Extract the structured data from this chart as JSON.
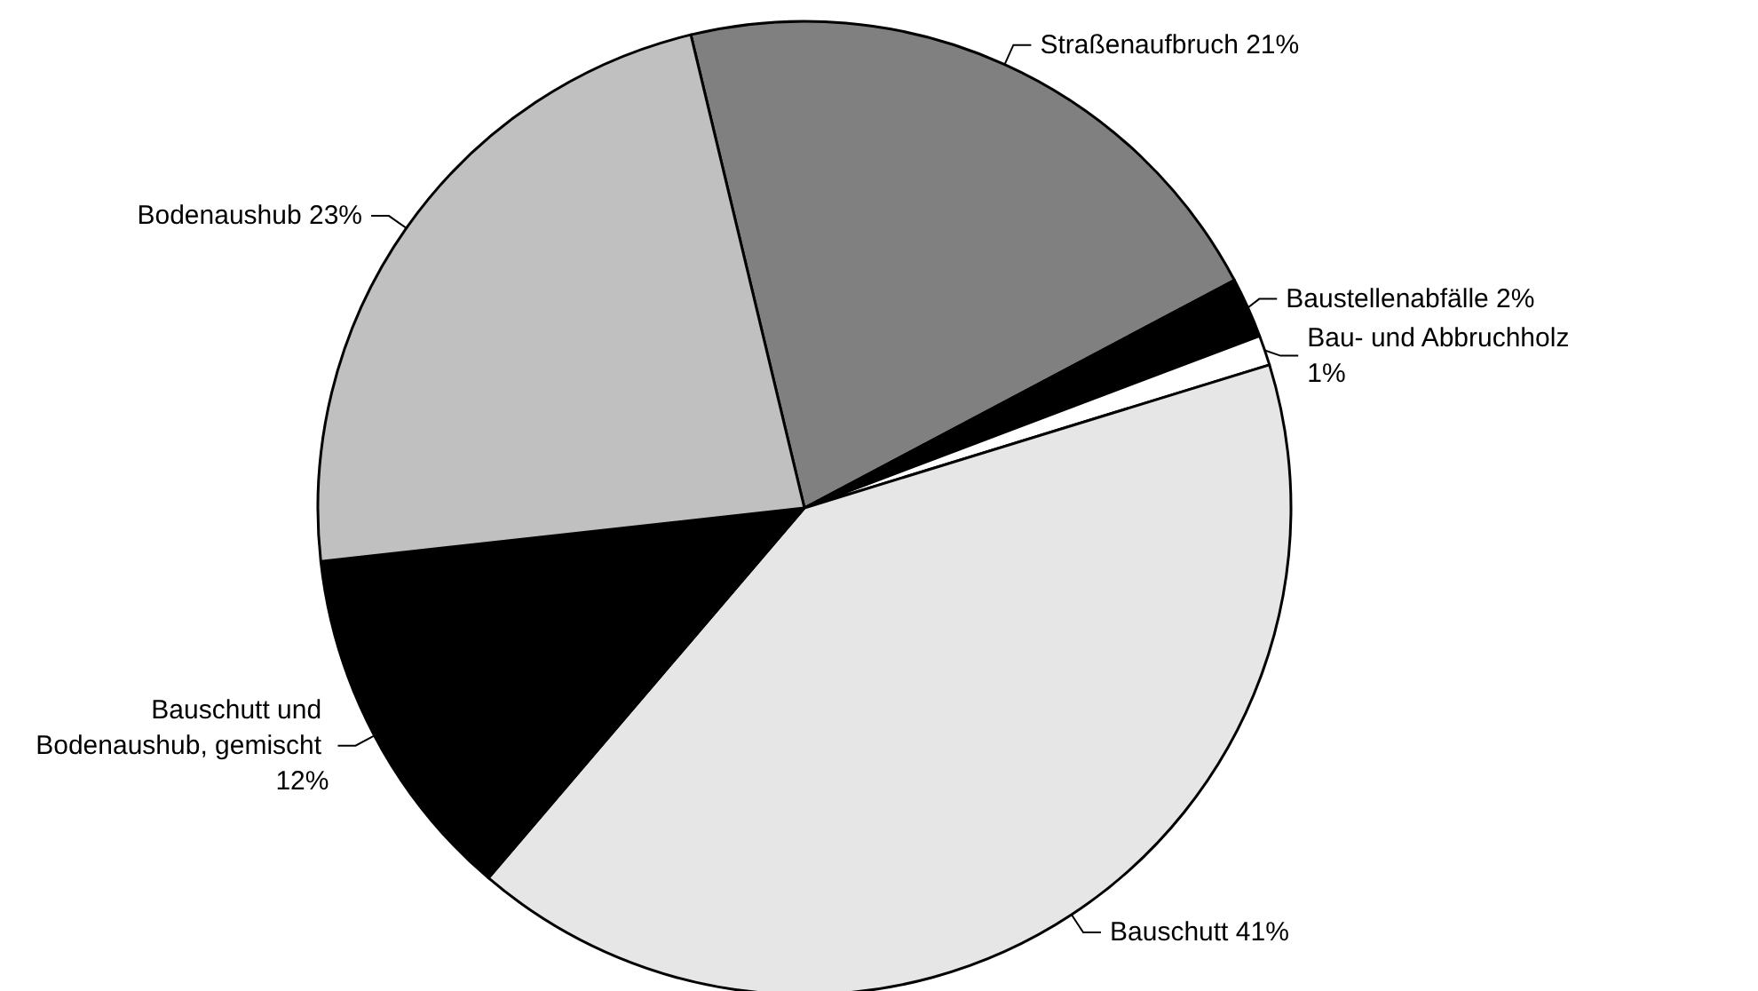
{
  "chart_data": {
    "type": "pie",
    "categories": [
      "Straßenaufbruch",
      "Baustellenabfälle",
      "Bau- und Abbruchholz",
      "Bauschutt",
      "Bauschutt und Bodenaushub, gemischt",
      "Bodenaushub"
    ],
    "values": [
      21,
      2,
      1,
      41,
      12,
      23
    ],
    "value_labels": [
      "21%",
      "2%",
      "1%",
      "41%",
      "12%",
      "23%"
    ],
    "colors": [
      "#808080",
      "#000000",
      "#ffffff",
      "#e6e6e6",
      "#000000",
      "#c0c0c0"
    ]
  }
}
